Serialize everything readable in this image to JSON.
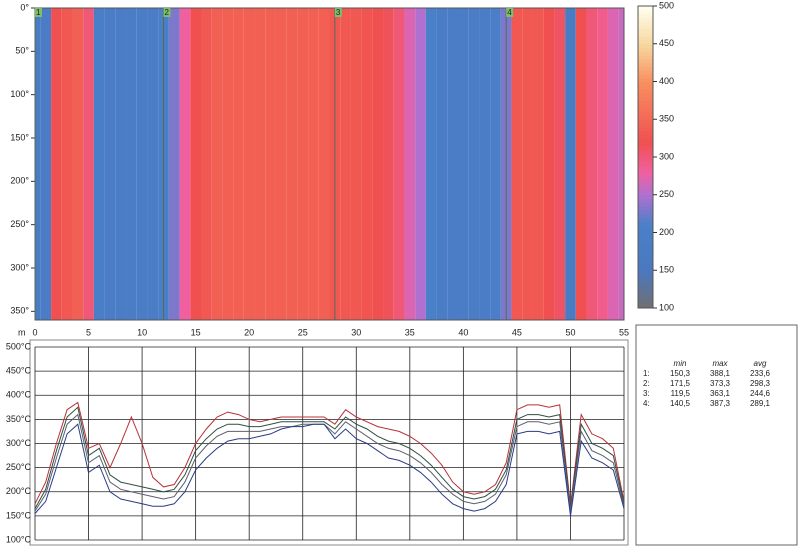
{
  "chart_data": [
    {
      "type": "heatmap",
      "x": [
        0,
        1,
        2,
        3,
        4,
        5,
        6,
        7,
        8,
        9,
        10,
        11,
        12,
        13,
        14,
        15,
        16,
        17,
        18,
        19,
        20,
        21,
        22,
        23,
        24,
        25,
        26,
        27,
        28,
        29,
        30,
        31,
        32,
        33,
        34,
        35,
        36,
        37,
        38,
        39,
        40,
        41,
        42,
        43,
        44,
        45,
        46,
        47,
        48,
        49,
        50,
        51,
        52,
        53,
        54,
        55
      ],
      "values": [
        180,
        190,
        320,
        330,
        340,
        300,
        200,
        190,
        185,
        185,
        185,
        185,
        200,
        230,
        280,
        320,
        330,
        340,
        340,
        340,
        340,
        340,
        340,
        340,
        340,
        340,
        340,
        340,
        330,
        330,
        330,
        325,
        320,
        315,
        300,
        270,
        250,
        210,
        190,
        190,
        190,
        190,
        190,
        200,
        230,
        330,
        330,
        330,
        320,
        310,
        180,
        320,
        300,
        290,
        270,
        260
      ],
      "xlim": [
        0,
        55
      ],
      "ylim": [
        0,
        360
      ],
      "yticks": [
        {
          "value": 0,
          "label": "0°"
        },
        {
          "value": 50,
          "label": "50°"
        },
        {
          "value": 100,
          "label": "100°"
        },
        {
          "value": 150,
          "label": "150°"
        },
        {
          "value": 200,
          "label": "200°"
        },
        {
          "value": 250,
          "label": "250°"
        },
        {
          "value": 300,
          "label": "300°"
        },
        {
          "value": 350,
          "label": "350°"
        }
      ],
      "zlim": [
        100,
        500
      ],
      "zticks": [
        100,
        150,
        200,
        250,
        300,
        350,
        400,
        450,
        500
      ],
      "colorscale": [
        [
          100,
          "#707070"
        ],
        [
          150,
          "#4a78c0"
        ],
        [
          210,
          "#4a80c8"
        ],
        [
          250,
          "#b070d0"
        ],
        [
          280,
          "#f060a0"
        ],
        [
          320,
          "#f05050"
        ],
        [
          400,
          "#f89060"
        ],
        [
          450,
          "#f8d8a0"
        ],
        [
          500,
          "#fffff0"
        ]
      ],
      "annotations": [
        {
          "x": 0,
          "label": "1"
        },
        {
          "x": 12,
          "label": "2"
        },
        {
          "x": 28,
          "label": "3"
        },
        {
          "x": 44,
          "label": "4"
        }
      ]
    },
    {
      "type": "line",
      "x_label": "m",
      "x": [
        0,
        1,
        2,
        3,
        4,
        5,
        6,
        7,
        8,
        9,
        10,
        11,
        12,
        13,
        14,
        15,
        16,
        17,
        18,
        19,
        20,
        21,
        22,
        23,
        24,
        25,
        26,
        27,
        28,
        29,
        30,
        31,
        32,
        33,
        34,
        35,
        36,
        37,
        38,
        39,
        40,
        41,
        42,
        43,
        44,
        45,
        46,
        47,
        48,
        49,
        50,
        51,
        52,
        53,
        54,
        55
      ],
      "xlim": [
        0,
        55
      ],
      "xticks": [
        0,
        5,
        10,
        15,
        20,
        25,
        30,
        35,
        40,
        45,
        50,
        55
      ],
      "ylim": [
        100,
        500
      ],
      "yticks": [
        {
          "value": 100,
          "label": "100°C"
        },
        {
          "value": 150,
          "label": "150°C"
        },
        {
          "value": 200,
          "label": "200°C"
        },
        {
          "value": 250,
          "label": "250°C"
        },
        {
          "value": 300,
          "label": "300°C"
        },
        {
          "value": 350,
          "label": "350°C"
        },
        {
          "value": 400,
          "label": "400°C"
        },
        {
          "value": 450,
          "label": "450°C"
        },
        {
          "value": 500,
          "label": "500°C"
        }
      ],
      "grid": true,
      "series": [
        {
          "color": "#b83038",
          "values": [
            175,
            220,
            300,
            370,
            385,
            290,
            300,
            250,
            300,
            355,
            300,
            230,
            210,
            215,
            250,
            300,
            330,
            355,
            365,
            360,
            350,
            345,
            350,
            355,
            355,
            355,
            355,
            355,
            340,
            370,
            355,
            345,
            335,
            330,
            325,
            315,
            300,
            280,
            255,
            220,
            200,
            195,
            200,
            215,
            260,
            370,
            380,
            380,
            375,
            380,
            170,
            360,
            320,
            310,
            290,
            180
          ]
        },
        {
          "color": "#2e5040",
          "values": [
            165,
            205,
            285,
            355,
            375,
            275,
            290,
            235,
            220,
            215,
            210,
            205,
            200,
            205,
            235,
            285,
            310,
            330,
            340,
            340,
            335,
            335,
            340,
            345,
            345,
            345,
            345,
            345,
            330,
            355,
            340,
            330,
            315,
            305,
            300,
            290,
            275,
            255,
            230,
            205,
            190,
            185,
            190,
            205,
            245,
            350,
            360,
            360,
            355,
            360,
            165,
            340,
            300,
            290,
            275,
            175
          ]
        },
        {
          "color": "#5a6070",
          "values": [
            160,
            195,
            270,
            340,
            360,
            260,
            275,
            220,
            205,
            200,
            195,
            190,
            185,
            190,
            220,
            270,
            295,
            315,
            325,
            325,
            325,
            325,
            330,
            335,
            335,
            340,
            340,
            340,
            320,
            345,
            330,
            315,
            300,
            290,
            285,
            275,
            260,
            240,
            215,
            195,
            180,
            175,
            180,
            195,
            235,
            335,
            345,
            345,
            340,
            345,
            160,
            325,
            285,
            275,
            260,
            170
          ]
        },
        {
          "color": "#2a3a88",
          "values": [
            155,
            180,
            250,
            320,
            340,
            240,
            255,
            200,
            185,
            180,
            175,
            170,
            170,
            175,
            200,
            245,
            270,
            290,
            305,
            310,
            310,
            315,
            320,
            330,
            335,
            335,
            340,
            340,
            310,
            330,
            310,
            300,
            285,
            270,
            265,
            255,
            240,
            220,
            195,
            175,
            165,
            160,
            165,
            180,
            215,
            320,
            325,
            325,
            320,
            325,
            150,
            305,
            270,
            260,
            245,
            165
          ]
        }
      ]
    }
  ],
  "stats": {
    "columns": [
      "min",
      "max",
      "avg"
    ],
    "rows": [
      [
        "1:",
        "150,3",
        "388,1",
        "233,6"
      ],
      [
        "2:",
        "171,5",
        "373,3",
        "298,3"
      ],
      [
        "3:",
        "119,5",
        "363,1",
        "244,6"
      ],
      [
        "4:",
        "140,5",
        "387,3",
        "289,1"
      ]
    ]
  }
}
